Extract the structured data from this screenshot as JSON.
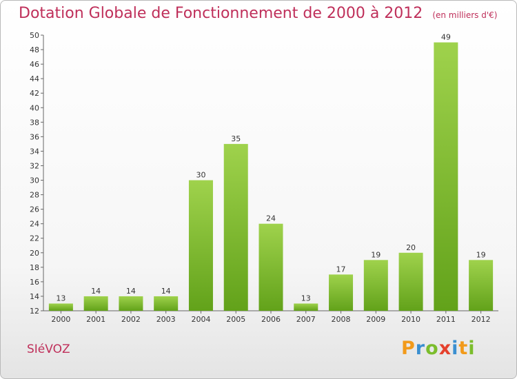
{
  "title": "Dotation Globale de Fonctionnement de 2000 à 2012",
  "subtitle": "(en milliers d'€)",
  "commune": "SIéVOZ",
  "logo": {
    "letters": [
      "P",
      "r",
      "o",
      "x",
      "i",
      "t",
      "i"
    ],
    "colors": [
      "#f29a1a",
      "#3a8fd0",
      "#7bbd2c",
      "#e5412d",
      "#3a8fd0",
      "#f29a1a",
      "#7bbd2c"
    ]
  },
  "chart_data": {
    "type": "bar",
    "categories": [
      "2000",
      "2001",
      "2002",
      "2003",
      "2004",
      "2005",
      "2006",
      "2007",
      "2008",
      "2009",
      "2010",
      "2011",
      "2012"
    ],
    "values": [
      13,
      14,
      14,
      14,
      30,
      35,
      24,
      13,
      17,
      19,
      20,
      49,
      19
    ],
    "ylim": [
      12,
      50
    ],
    "yticks": [
      12,
      14,
      16,
      18,
      20,
      22,
      24,
      26,
      28,
      30,
      32,
      34,
      36,
      38,
      40,
      42,
      44,
      46,
      48,
      50
    ],
    "bar_color": "#7cbd2e",
    "grid": false
  }
}
